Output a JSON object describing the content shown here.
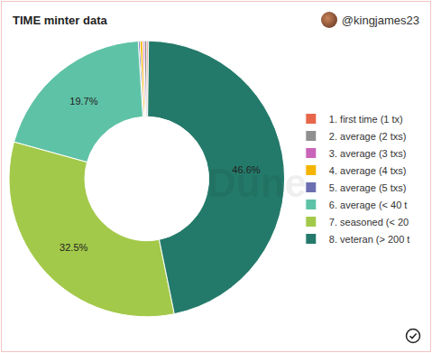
{
  "chart_data": {
    "type": "pie",
    "title": "TIME minter data",
    "author": "@kingjames23",
    "watermark": "Dune",
    "categories": [
      "1. first time (1 tx)",
      "2. average (2 txs)",
      "3. average (3 txs)",
      "4. average (4 txs)",
      "5. average (5 txs)",
      "6. average (< 40 t",
      "7. seasoned (< 20",
      "8. veteran (> 200 t"
    ],
    "values": [
      0.2,
      0.3,
      0.2,
      0.3,
      0.2,
      19.7,
      32.5,
      46.6
    ],
    "value_labels": [
      null,
      null,
      null,
      null,
      null,
      "19.7%",
      "32.5%",
      "46.6%"
    ],
    "colors": [
      "#e8664a",
      "#8f8f8f",
      "#c964b8",
      "#f4b400",
      "#6b6fb2",
      "#5ec2a6",
      "#a3c94a",
      "#247a6a"
    ],
    "data_labels": true,
    "legend": "right"
  }
}
